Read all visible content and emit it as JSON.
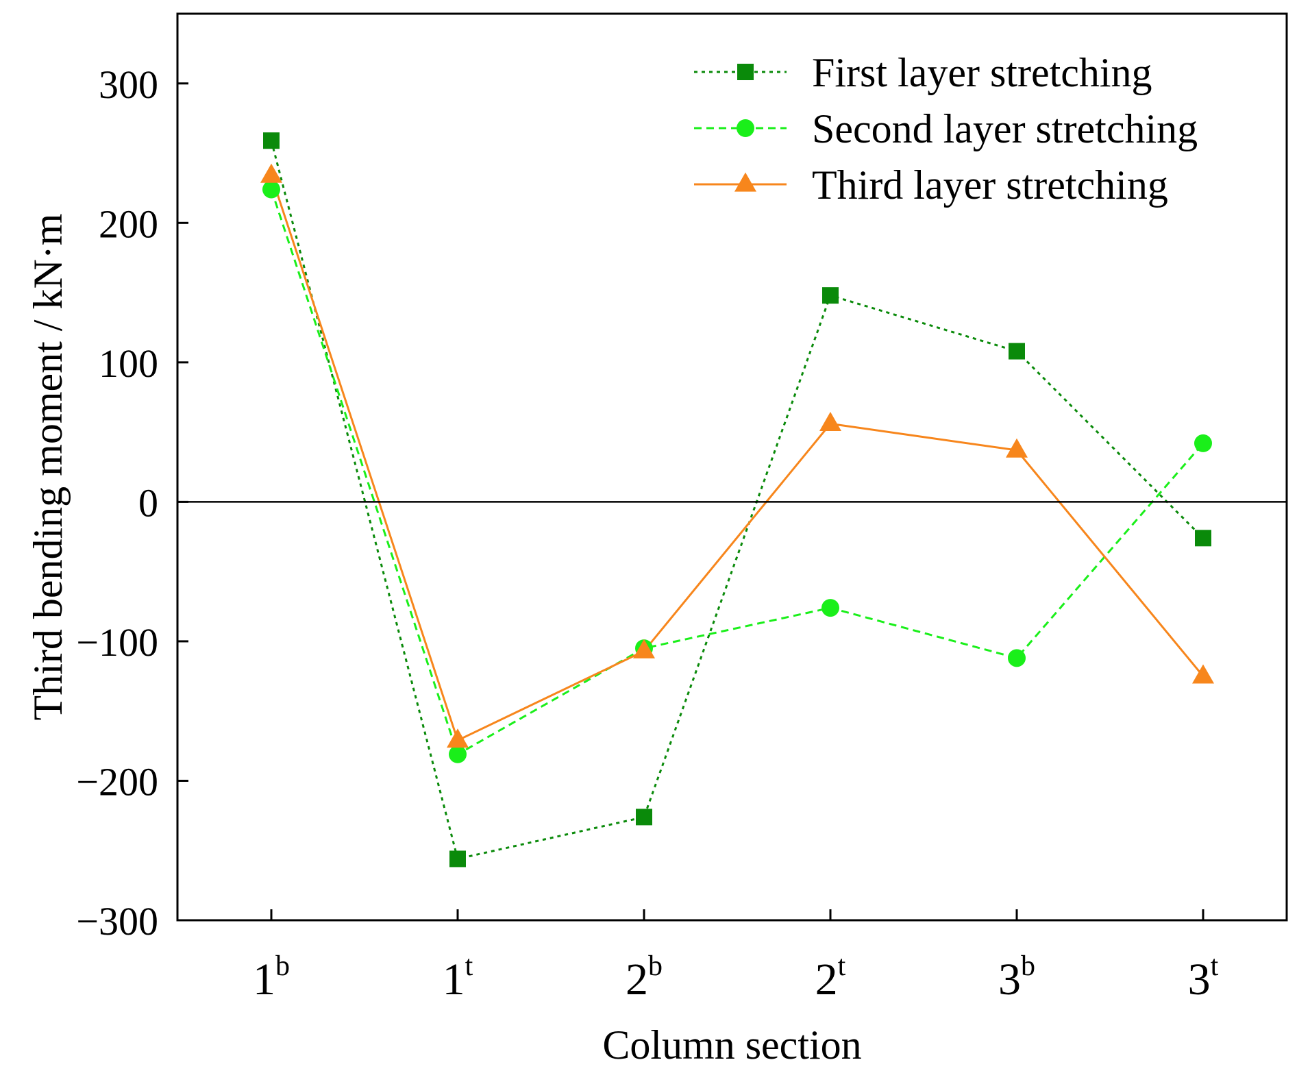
{
  "chart_data": {
    "type": "line",
    "xlabel": "Column section",
    "ylabel": "Third bending moment / kN·m",
    "ylim": [
      -300,
      350
    ],
    "yticks": [
      -300,
      -200,
      -100,
      0,
      100,
      200,
      300
    ],
    "ytick_labels": [
      "−300",
      "−200",
      "−100",
      "0",
      "100",
      "200",
      "300"
    ],
    "categories": [
      {
        "base": "1",
        "sup": "b"
      },
      {
        "base": "1",
        "sup": "t"
      },
      {
        "base": "2",
        "sup": "b"
      },
      {
        "base": "2",
        "sup": "t"
      },
      {
        "base": "3",
        "sup": "b"
      },
      {
        "base": "3",
        "sup": "t"
      }
    ],
    "series": [
      {
        "name": "First layer stretching",
        "marker": "square",
        "line": "dotted",
        "color": "#0a8a0a",
        "values": [
          259,
          -256,
          -226,
          148,
          108,
          -26
        ]
      },
      {
        "name": "Second layer stretching",
        "marker": "circle",
        "line": "dashed",
        "color": "#1aef1a",
        "values": [
          224,
          -181,
          -105,
          -76,
          -112,
          42
        ]
      },
      {
        "name": "Third layer stretching",
        "marker": "triangle",
        "line": "solid",
        "color": "#f7861c",
        "values": [
          234,
          -171,
          -107,
          56,
          37,
          -125
        ]
      }
    ],
    "zero_line": true,
    "legend_position": "top-right"
  }
}
